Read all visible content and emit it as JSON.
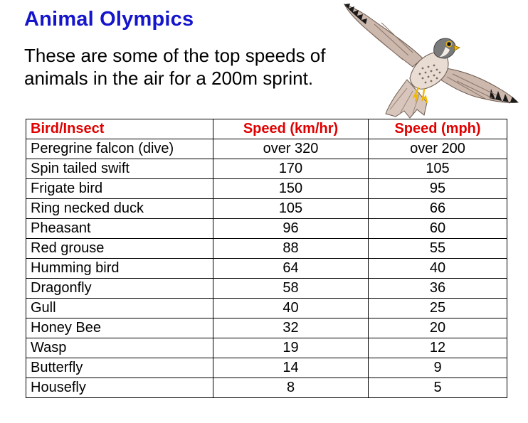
{
  "title": "Animal Olympics",
  "intro": "These are some of the top speeds of animals in the air for a 200m sprint.",
  "image": {
    "icon": "falcon-illustration",
    "colors": {
      "wing": "#cdb8ad",
      "wing_dark": "#9a8478",
      "wing_tips": "#1a1a1a",
      "head": "#7a7a7a",
      "feet": "#f0b800"
    }
  },
  "colors": {
    "title": "#1515cc",
    "header_text": "#e00000",
    "body_text": "#000000",
    "border": "#000000"
  },
  "table": {
    "headers": [
      "Bird/Insect",
      "Speed (km/hr)",
      "Speed (mph)"
    ],
    "rows": [
      [
        "Peregrine falcon (dive)",
        "over 320",
        "over 200"
      ],
      [
        "Spin tailed swift",
        "170",
        "105"
      ],
      [
        "Frigate bird",
        "150",
        "95"
      ],
      [
        "Ring necked duck",
        "105",
        "66"
      ],
      [
        "Pheasant",
        "96",
        "60"
      ],
      [
        "Red grouse",
        "88",
        "55"
      ],
      [
        "Humming bird",
        "64",
        "40"
      ],
      [
        "Dragonfly",
        "58",
        "36"
      ],
      [
        "Gull",
        "40",
        "25"
      ],
      [
        "Honey Bee",
        "32",
        "20"
      ],
      [
        "Wasp",
        "19",
        "12"
      ],
      [
        "Butterfly",
        "14",
        "9"
      ],
      [
        "Housefly",
        "8",
        "5"
      ]
    ]
  }
}
